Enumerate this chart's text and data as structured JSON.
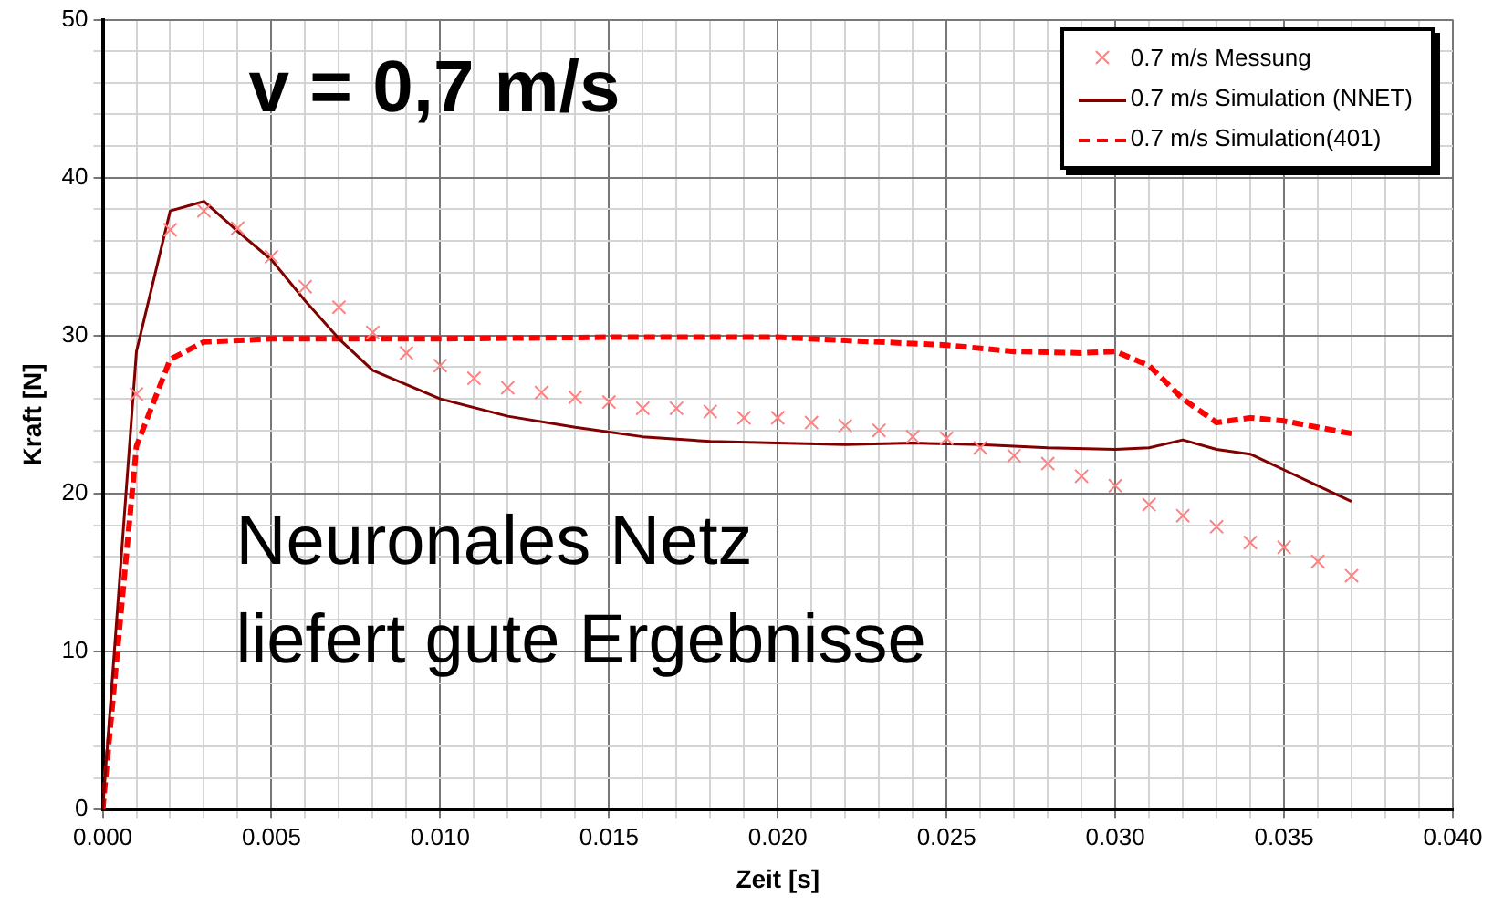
{
  "chart_data": {
    "type": "line",
    "title": "v = 0,7 m/s",
    "xlabel": "Zeit [s]",
    "ylabel": "Kraft [N]",
    "annotations": [
      "Neuronales Netz\nliefert gute Ergebnisse"
    ],
    "series": [
      {
        "name": "0.7 m/s Messung",
        "type": "scatter",
        "marker": "cross",
        "color": "#ff8080",
        "x": [
          0.001,
          0.002,
          0.003,
          0.004,
          0.005,
          0.006,
          0.007,
          0.008,
          0.009,
          0.01,
          0.011,
          0.012,
          0.013,
          0.014,
          0.015,
          0.016,
          0.017,
          0.018,
          0.019,
          0.02,
          0.021,
          0.022,
          0.023,
          0.024,
          0.025,
          0.026,
          0.027,
          0.028,
          0.029,
          0.03,
          0.031,
          0.032,
          0.033,
          0.034,
          0.035,
          0.036,
          0.037
        ],
        "values": [
          26.3,
          36.7,
          37.9,
          36.8,
          35.0,
          33.1,
          31.8,
          30.2,
          28.9,
          28.1,
          27.3,
          26.7,
          26.4,
          26.1,
          25.8,
          25.4,
          25.4,
          25.2,
          24.8,
          24.8,
          24.5,
          24.3,
          24.0,
          23.6,
          23.5,
          22.9,
          22.4,
          21.9,
          21.1,
          20.5,
          19.3,
          18.6,
          17.9,
          16.9,
          16.6,
          15.7,
          14.8
        ]
      },
      {
        "name": "0.7 m/s Simulation (NNET)",
        "type": "line",
        "marker": "none",
        "line_style": "solid",
        "color": "#800000",
        "x": [
          0,
          0.001,
          0.002,
          0.003,
          0.004,
          0.005,
          0.006,
          0.007,
          0.008,
          0.01,
          0.012,
          0.014,
          0.016,
          0.018,
          0.02,
          0.022,
          0.024,
          0.026,
          0.028,
          0.03,
          0.031,
          0.032,
          0.033,
          0.034,
          0.035,
          0.036,
          0.037
        ],
        "values": [
          0,
          29,
          37.9,
          38.5,
          36.6,
          34.8,
          32.2,
          29.8,
          27.8,
          26.0,
          24.9,
          24.2,
          23.6,
          23.3,
          23.2,
          23.1,
          23.2,
          23.1,
          22.9,
          22.8,
          22.9,
          23.4,
          22.8,
          22.5,
          21.5,
          20.5,
          19.5
        ]
      },
      {
        "name": "0.7 m/s Simulation(401)",
        "type": "line",
        "marker": "none",
        "line_style": "dashed",
        "color": "#ff0000",
        "x": [
          0,
          0.001,
          0.002,
          0.003,
          0.005,
          0.01,
          0.015,
          0.02,
          0.022,
          0.025,
          0.027,
          0.029,
          0.03,
          0.031,
          0.032,
          0.033,
          0.034,
          0.035,
          0.036,
          0.037
        ],
        "values": [
          0,
          23,
          28.5,
          29.6,
          29.8,
          29.8,
          29.9,
          29.9,
          29.7,
          29.4,
          29.0,
          28.9,
          29.0,
          28.1,
          26.0,
          24.5,
          24.8,
          24.6,
          24.2,
          23.8
        ]
      }
    ],
    "xlim": [
      0,
      0.04
    ],
    "ylim": [
      0,
      50
    ],
    "xticks": [
      {
        "value": 0,
        "label": "0.000"
      },
      {
        "value": 0.001,
        "label": null
      },
      {
        "value": 0.002,
        "label": null
      },
      {
        "value": 0.003,
        "label": null
      },
      {
        "value": 0.004,
        "label": null
      },
      {
        "value": 0.005,
        "label": "0.005"
      },
      {
        "value": 0.006,
        "label": null
      },
      {
        "value": 0.007,
        "label": null
      },
      {
        "value": 0.008,
        "label": null
      },
      {
        "value": 0.009,
        "label": null
      },
      {
        "value": 0.01,
        "label": "0.010"
      },
      {
        "value": 0.011,
        "label": null
      },
      {
        "value": 0.012,
        "label": null
      },
      {
        "value": 0.013,
        "label": null
      },
      {
        "value": 0.014,
        "label": null
      },
      {
        "value": 0.015,
        "label": "0.015"
      },
      {
        "value": 0.016,
        "label": null
      },
      {
        "value": 0.017,
        "label": null
      },
      {
        "value": 0.018,
        "label": null
      },
      {
        "value": 0.019,
        "label": null
      },
      {
        "value": 0.02,
        "label": "0.020"
      },
      {
        "value": 0.021,
        "label": null
      },
      {
        "value": 0.022,
        "label": null
      },
      {
        "value": 0.023,
        "label": null
      },
      {
        "value": 0.024,
        "label": null
      },
      {
        "value": 0.025,
        "label": "0.025"
      },
      {
        "value": 0.026,
        "label": null
      },
      {
        "value": 0.027,
        "label": null
      },
      {
        "value": 0.028,
        "label": null
      },
      {
        "value": 0.029,
        "label": null
      },
      {
        "value": 0.03,
        "label": "0.030"
      },
      {
        "value": 0.031,
        "label": null
      },
      {
        "value": 0.032,
        "label": null
      },
      {
        "value": 0.033,
        "label": null
      },
      {
        "value": 0.034,
        "label": null
      },
      {
        "value": 0.035,
        "label": "0.035"
      },
      {
        "value": 0.036,
        "label": null
      },
      {
        "value": 0.037,
        "label": null
      },
      {
        "value": 0.038,
        "label": null
      },
      {
        "value": 0.039,
        "label": null
      },
      {
        "value": 0.04,
        "label": "0.040"
      }
    ],
    "yticks": [
      0,
      {
        "value": 2,
        "label": null
      },
      {
        "value": 4,
        "label": null
      },
      {
        "value": 6,
        "label": null
      },
      {
        "value": 8,
        "label": null
      },
      10,
      {
        "value": 12,
        "label": null
      },
      {
        "value": 14,
        "label": null
      },
      {
        "value": 16,
        "label": null
      },
      {
        "value": 18,
        "label": null
      },
      20,
      {
        "value": 22,
        "label": null
      },
      {
        "value": 24,
        "label": null
      },
      {
        "value": 26,
        "label": null
      },
      {
        "value": 28,
        "label": null
      },
      30,
      {
        "value": 32,
        "label": null
      },
      {
        "value": 34,
        "label": null
      },
      {
        "value": 36,
        "label": null
      },
      {
        "value": 38,
        "label": null
      },
      40,
      {
        "value": 42,
        "label": null
      },
      {
        "value": 44,
        "label": null
      },
      {
        "value": 46,
        "label": null
      },
      {
        "value": 48,
        "label": null
      },
      50
    ],
    "grid": true,
    "legend": "top right"
  }
}
